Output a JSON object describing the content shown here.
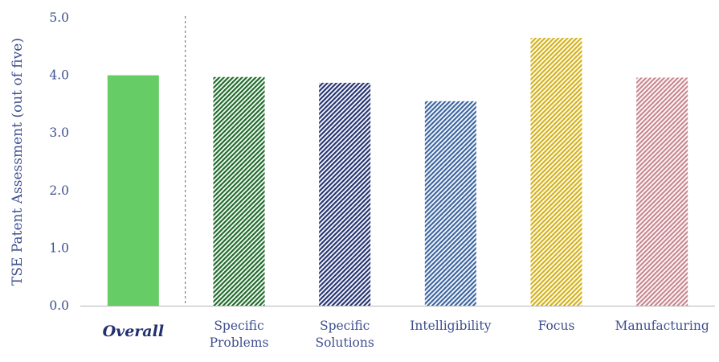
{
  "chart_data": {
    "type": "bar",
    "title": "",
    "ylabel": "TSE Patent Assessment (out of five)",
    "xlabel": "",
    "ylim": [
      0,
      5
    ],
    "yticks": [
      "0.0",
      "1.0",
      "2.0",
      "3.0",
      "4.0",
      "5.0"
    ],
    "grid": false,
    "categories": [
      {
        "lines": [
          "Overall"
        ],
        "emphasis": true
      },
      {
        "lines": [
          "Specific",
          "Problems"
        ]
      },
      {
        "lines": [
          "Specific",
          "Solutions"
        ]
      },
      {
        "lines": [
          "Intelligibility"
        ]
      },
      {
        "lines": [
          "Focus"
        ]
      },
      {
        "lines": [
          "Manufacturing"
        ]
      }
    ],
    "values": [
      4.0,
      3.97,
      3.87,
      3.55,
      4.65,
      3.96
    ],
    "colors": [
      "#66cc66",
      "#1f6b2a",
      "#263573",
      "#3c65a0",
      "#d4b21a",
      "#c98690"
    ],
    "fills": [
      "solid",
      "hatch",
      "hatch",
      "hatch",
      "hatch",
      "hatch"
    ],
    "separator_after_category": 0
  }
}
